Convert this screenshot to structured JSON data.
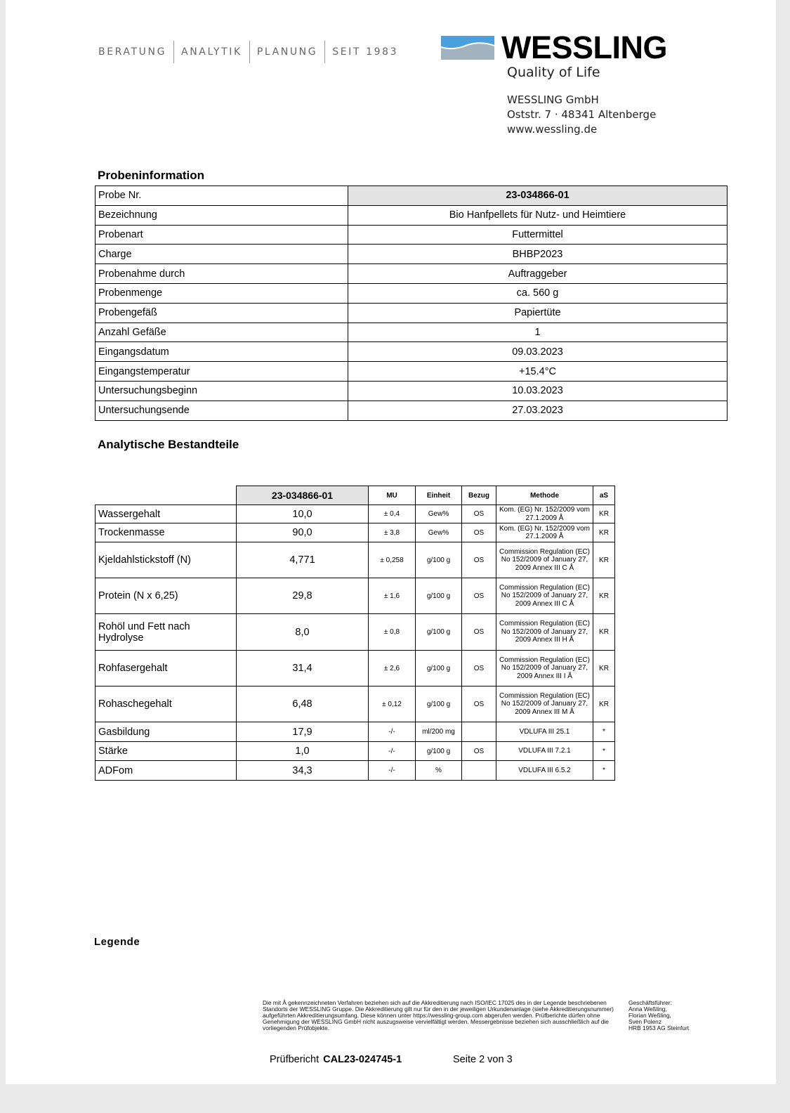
{
  "header": {
    "tagline": [
      "BERATUNG",
      "ANALYTIK",
      "PLANUNG",
      "SEIT 1983"
    ],
    "brand": "WESSLING",
    "slogan": "Quality of Life",
    "company": "WESSLING GmbH",
    "street": "Oststr. 7 · 48341 Altenberge",
    "web": "www.wessling.de",
    "logo_colors": {
      "blue": "#4aa0dc",
      "gray": "#a3b2bf"
    }
  },
  "probeninfo": {
    "title": "Probeninformation",
    "rows": [
      {
        "label": "Probe Nr.",
        "value": "23-034866-01"
      },
      {
        "label": "Bezeichnung",
        "value": "Bio Hanfpellets für Nutz- und Heimtiere"
      },
      {
        "label": "Probenart",
        "value": "Futtermittel"
      },
      {
        "label": "Charge",
        "value": "BHBP2023"
      },
      {
        "label": "Probenahme durch",
        "value": "Auftraggeber"
      },
      {
        "label": "Probenmenge",
        "value": "ca. 560 g"
      },
      {
        "label": "Probengefäß",
        "value": "Papiertüte"
      },
      {
        "label": "Anzahl Gefäße",
        "value": "1"
      },
      {
        "label": "Eingangsdatum",
        "value": "09.03.2023"
      },
      {
        "label": "Eingangstemperatur",
        "value": "+15.4°C"
      },
      {
        "label": "Untersuchungsbeginn",
        "value": "10.03.2023"
      },
      {
        "label": "Untersuchungsende",
        "value": "27.03.2023"
      }
    ]
  },
  "analytik": {
    "title": "Analytische Bestandteile",
    "headers": [
      "23-034866-01",
      "MU",
      "Einheit",
      "Bezug",
      "Methode",
      "aS"
    ],
    "rows": [
      {
        "name": "Wassergehalt",
        "value": "10,0",
        "mu": "± 0,4",
        "unit": "Gew%",
        "bezug": "OS",
        "method": "Kom. (EG) Nr. 152/2009 vom 27.1.2009 Å",
        "as": "KR"
      },
      {
        "name": "Trockenmasse",
        "value": "90,0",
        "mu": "± 3,8",
        "unit": "Gew%",
        "bezug": "OS",
        "method": "Kom. (EG) Nr. 152/2009 vom 27.1.2009 Å",
        "as": "KR"
      },
      {
        "name": "Kjeldahlstickstoff (N)",
        "value": "4,771",
        "mu": "± 0,258",
        "unit": "g/100 g",
        "bezug": "OS",
        "method": "Commission Regulation (EC) No 152/2009 of January 27, 2009 Annex III C Å",
        "as": "KR"
      },
      {
        "name": "Protein (N x 6,25)",
        "value": "29,8",
        "mu": "± 1,6",
        "unit": "g/100 g",
        "bezug": "OS",
        "method": "Commission Regulation (EC) No 152/2009 of January 27, 2009 Annex III C Å",
        "as": "KR"
      },
      {
        "name": "Rohöl und Fett nach Hydrolyse",
        "value": "8,0",
        "mu": "± 0,8",
        "unit": "g/100 g",
        "bezug": "OS",
        "method": "Commission Regulation (EC) No 152/2009 of January 27, 2009 Annex III H Å",
        "as": "KR"
      },
      {
        "name": "Rohfasergehalt",
        "value": "31,4",
        "mu": "± 2,6",
        "unit": "g/100 g",
        "bezug": "OS",
        "method": "Commission Regulation (EC) No 152/2009 of January 27, 2009 Annex III I Å",
        "as": "KR"
      },
      {
        "name": "Rohaschegehalt",
        "value": "6,48",
        "mu": "± 0,12",
        "unit": "g/100 g",
        "bezug": "OS",
        "method": "Commission Regulation (EC) No 152/2009 of January 27, 2009 Annex III M Å",
        "as": "KR"
      },
      {
        "name": "Gasbildung",
        "value": "17,9",
        "mu": "-/-",
        "unit": "ml/200 mg",
        "bezug": "",
        "method": "VDLUFA III 25.1",
        "as": "*"
      },
      {
        "name": "Stärke",
        "value": "1,0",
        "mu": "-/-",
        "unit": "g/100 g",
        "bezug": "OS",
        "method": "VDLUFA III 7.2.1",
        "as": "*"
      },
      {
        "name": "ADFom",
        "value": "34,3",
        "mu": "-/-",
        "unit": "%",
        "bezug": "",
        "method": "VDLUFA III 6.5.2",
        "as": "*"
      }
    ]
  },
  "legend": {
    "title": "Legende",
    "disclaimer": "Die mit Å gekennzeichneten Verfahren beziehen sich auf die Akkreditierung nach ISO/IEC 17025 des in der Legende beschriebenen Standorts der WESSLING Gruppe. Die Akkreditierung gilt nur für den in der jeweiligen Urkundenanlage (siehe Akkreditierungsnummer) aufgeführten Akkreditierungsumfang. Diese können unter https://wessling-group.com abgerufen werden. Prüfberichte dürfen ohne Genehmigung der WESSLING GmbH nicht auszugsweise vervielfältigt werden. Messergebnisse beziehen sich ausschließlich auf die vorliegenden Prüfobjekte.",
    "management": [
      "Geschäftsführer:",
      "Anna Weßling,",
      "Florian Weßling,",
      "Sven Polenz",
      "HRB 1953 AG Steinfurt"
    ]
  },
  "footer": {
    "report_label": "Prüfbericht",
    "report_no": "CAL23-024745-1",
    "page": "Seite 2 von 3"
  }
}
